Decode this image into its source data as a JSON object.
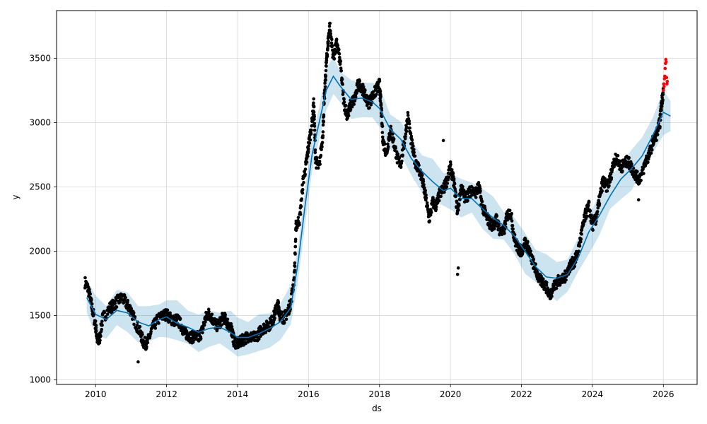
{
  "chart_data": {
    "type": "scatter",
    "title": "",
    "xlabel": "ds",
    "ylabel": "y",
    "xlim": [
      2008.9,
      2026.95
    ],
    "ylim": [
      965,
      3870
    ],
    "x_ticks": [
      2010,
      2012,
      2014,
      2016,
      2018,
      2020,
      2022,
      2024,
      2026
    ],
    "x_tick_labels": [
      "2010",
      "2012",
      "2014",
      "2016",
      "2018",
      "2020",
      "2022",
      "2024",
      "2026"
    ],
    "y_ticks": [
      1000,
      1500,
      2000,
      2500,
      3000,
      3500
    ],
    "y_tick_labels": [
      "1000",
      "1500",
      "2000",
      "2500",
      "3000",
      "3500"
    ],
    "grid": true,
    "legend": "none",
    "colors": {
      "observed": "#000000",
      "recent": "#ff0000",
      "forecast_line": "#0072b2",
      "uncertainty_band": "#0072b2",
      "grid": "#d9d9d9"
    },
    "observed_trend": [
      [
        2009.7,
        1760
      ],
      [
        2009.8,
        1700
      ],
      [
        2009.9,
        1560
      ],
      [
        2010.0,
        1420
      ],
      [
        2010.05,
        1310
      ],
      [
        2010.1,
        1300
      ],
      [
        2010.2,
        1480
      ],
      [
        2010.4,
        1560
      ],
      [
        2010.5,
        1580
      ],
      [
        2010.6,
        1610
      ],
      [
        2010.75,
        1640
      ],
      [
        2010.9,
        1580
      ],
      [
        2011.0,
        1540
      ],
      [
        2011.1,
        1460
      ],
      [
        2011.25,
        1370
      ],
      [
        2011.35,
        1290
      ],
      [
        2011.45,
        1280
      ],
      [
        2011.6,
        1400
      ],
      [
        2011.75,
        1470
      ],
      [
        2011.9,
        1500
      ],
      [
        2012.0,
        1510
      ],
      [
        2012.1,
        1480
      ],
      [
        2012.2,
        1460
      ],
      [
        2012.3,
        1470
      ],
      [
        2012.4,
        1430
      ],
      [
        2012.5,
        1370
      ],
      [
        2012.6,
        1350
      ],
      [
        2012.7,
        1330
      ],
      [
        2012.8,
        1340
      ],
      [
        2012.9,
        1330
      ],
      [
        2013.0,
        1380
      ],
      [
        2013.1,
        1480
      ],
      [
        2013.2,
        1520
      ],
      [
        2013.3,
        1470
      ],
      [
        2013.4,
        1420
      ],
      [
        2013.5,
        1440
      ],
      [
        2013.6,
        1490
      ],
      [
        2013.7,
        1450
      ],
      [
        2013.8,
        1400
      ],
      [
        2013.85,
        1380
      ],
      [
        2013.9,
        1300
      ],
      [
        2014.0,
        1280
      ],
      [
        2014.1,
        1300
      ],
      [
        2014.2,
        1320
      ],
      [
        2014.3,
        1340
      ],
      [
        2014.4,
        1330
      ],
      [
        2014.5,
        1330
      ],
      [
        2014.6,
        1360
      ],
      [
        2014.7,
        1400
      ],
      [
        2014.8,
        1410
      ],
      [
        2014.9,
        1430
      ],
      [
        2015.0,
        1470
      ],
      [
        2015.1,
        1560
      ],
      [
        2015.15,
        1580
      ],
      [
        2015.2,
        1500
      ],
      [
        2015.3,
        1480
      ],
      [
        2015.4,
        1520
      ],
      [
        2015.5,
        1600
      ],
      [
        2015.6,
        1800
      ],
      [
        2015.65,
        2200
      ],
      [
        2015.75,
        2250
      ],
      [
        2015.85,
        2550
      ],
      [
        2015.95,
        2700
      ],
      [
        2016.0,
        2820
      ],
      [
        2016.1,
        3000
      ],
      [
        2016.15,
        3150
      ],
      [
        2016.2,
        2700
      ],
      [
        2016.3,
        2650
      ],
      [
        2016.4,
        2900
      ],
      [
        2016.45,
        3200
      ],
      [
        2016.5,
        3450
      ],
      [
        2016.55,
        3620
      ],
      [
        2016.6,
        3750
      ],
      [
        2016.7,
        3500
      ],
      [
        2016.8,
        3620
      ],
      [
        2016.9,
        3450
      ],
      [
        2017.0,
        3150
      ],
      [
        2017.1,
        3050
      ],
      [
        2017.2,
        3150
      ],
      [
        2017.3,
        3180
      ],
      [
        2017.4,
        3300
      ],
      [
        2017.5,
        3280
      ],
      [
        2017.6,
        3200
      ],
      [
        2017.7,
        3150
      ],
      [
        2017.8,
        3200
      ],
      [
        2017.9,
        3250
      ],
      [
        2018.0,
        3300
      ],
      [
        2018.05,
        3100
      ],
      [
        2018.1,
        2850
      ],
      [
        2018.2,
        2760
      ],
      [
        2018.3,
        2950
      ],
      [
        2018.4,
        2850
      ],
      [
        2018.5,
        2720
      ],
      [
        2018.6,
        2680
      ],
      [
        2018.7,
        2850
      ],
      [
        2018.8,
        3050
      ],
      [
        2018.9,
        2850
      ],
      [
        2019.0,
        2700
      ],
      [
        2019.1,
        2650
      ],
      [
        2019.2,
        2560
      ],
      [
        2019.3,
        2420
      ],
      [
        2019.4,
        2250
      ],
      [
        2019.5,
        2380
      ],
      [
        2019.6,
        2350
      ],
      [
        2019.7,
        2450
      ],
      [
        2019.8,
        2480
      ],
      [
        2019.9,
        2550
      ],
      [
        2020.0,
        2650
      ],
      [
        2020.1,
        2530
      ],
      [
        2020.2,
        2300
      ],
      [
        2020.3,
        2500
      ],
      [
        2020.4,
        2420
      ],
      [
        2020.5,
        2440
      ],
      [
        2020.6,
        2480
      ],
      [
        2020.7,
        2450
      ],
      [
        2020.8,
        2500
      ],
      [
        2020.9,
        2350
      ],
      [
        2021.0,
        2280
      ],
      [
        2021.1,
        2220
      ],
      [
        2021.2,
        2200
      ],
      [
        2021.3,
        2250
      ],
      [
        2021.4,
        2150
      ],
      [
        2021.5,
        2150
      ],
      [
        2021.6,
        2280
      ],
      [
        2021.7,
        2300
      ],
      [
        2021.8,
        2100
      ],
      [
        2021.9,
        2020
      ],
      [
        2022.0,
        2000
      ],
      [
        2022.1,
        2070
      ],
      [
        2022.2,
        2020
      ],
      [
        2022.3,
        1930
      ],
      [
        2022.4,
        1860
      ],
      [
        2022.5,
        1780
      ],
      [
        2022.6,
        1760
      ],
      [
        2022.7,
        1720
      ],
      [
        2022.8,
        1660
      ],
      [
        2022.9,
        1720
      ],
      [
        2023.0,
        1760
      ],
      [
        2023.1,
        1780
      ],
      [
        2023.2,
        1780
      ],
      [
        2023.3,
        1850
      ],
      [
        2023.4,
        1900
      ],
      [
        2023.5,
        1920
      ],
      [
        2023.6,
        2000
      ],
      [
        2023.7,
        2150
      ],
      [
        2023.8,
        2280
      ],
      [
        2023.9,
        2350
      ],
      [
        2024.0,
        2200
      ],
      [
        2024.1,
        2250
      ],
      [
        2024.2,
        2400
      ],
      [
        2024.3,
        2550
      ],
      [
        2024.4,
        2500
      ],
      [
        2024.5,
        2560
      ],
      [
        2024.6,
        2700
      ],
      [
        2024.7,
        2720
      ],
      [
        2024.8,
        2650
      ],
      [
        2024.9,
        2680
      ],
      [
        2025.0,
        2700
      ],
      [
        2025.1,
        2650
      ],
      [
        2025.2,
        2600
      ],
      [
        2025.3,
        2560
      ],
      [
        2025.4,
        2600
      ],
      [
        2025.5,
        2700
      ],
      [
        2025.6,
        2750
      ],
      [
        2025.7,
        2850
      ],
      [
        2025.8,
        2900
      ],
      [
        2025.9,
        3000
      ],
      [
        2025.95,
        3150
      ],
      [
        2026.0,
        3250
      ]
    ],
    "observed_spread": 45,
    "recent_points": [
      [
        2026.0,
        3250
      ],
      [
        2026.01,
        3300
      ],
      [
        2026.02,
        3280
      ],
      [
        2026.03,
        3340
      ],
      [
        2026.04,
        3360
      ],
      [
        2026.05,
        3420
      ],
      [
        2026.06,
        3460
      ],
      [
        2026.07,
        3490
      ],
      [
        2026.08,
        3470
      ],
      [
        2026.09,
        3350
      ],
      [
        2026.1,
        3300
      ],
      [
        2026.11,
        3320
      ]
    ],
    "outliers": [
      [
        2011.2,
        1140
      ],
      [
        2020.2,
        1820
      ],
      [
        2020.22,
        1870
      ],
      [
        2025.3,
        2400
      ],
      [
        2019.8,
        2860
      ]
    ],
    "forecast": {
      "x": [
        2009.75,
        2010.0,
        2010.3,
        2010.6,
        2010.9,
        2011.2,
        2011.5,
        2011.8,
        2012.0,
        2012.3,
        2012.6,
        2012.9,
        2013.2,
        2013.5,
        2013.8,
        2014.0,
        2014.3,
        2014.6,
        2014.9,
        2015.2,
        2015.5,
        2015.7,
        2015.9,
        2016.1,
        2016.3,
        2016.5,
        2016.7,
        2016.9,
        2017.2,
        2017.5,
        2017.8,
        2018.0,
        2018.3,
        2018.6,
        2018.9,
        2019.2,
        2019.5,
        2019.8,
        2020.0,
        2020.3,
        2020.6,
        2020.9,
        2021.2,
        2021.5,
        2021.8,
        2022.1,
        2022.4,
        2022.7,
        2023.0,
        2023.3,
        2023.6,
        2023.9,
        2024.2,
        2024.5,
        2024.8,
        2025.1,
        2025.4,
        2025.7,
        2026.0,
        2026.2
      ],
      "yhat": [
        1640,
        1510,
        1470,
        1540,
        1520,
        1450,
        1420,
        1470,
        1490,
        1440,
        1410,
        1370,
        1400,
        1410,
        1370,
        1330,
        1330,
        1360,
        1400,
        1450,
        1560,
        1900,
        2350,
        2750,
        3000,
        3250,
        3360,
        3280,
        3180,
        3190,
        3160,
        3110,
        2950,
        2870,
        2720,
        2620,
        2540,
        2470,
        2490,
        2410,
        2410,
        2330,
        2260,
        2200,
        2120,
        2000,
        1880,
        1800,
        1790,
        1820,
        1950,
        2150,
        2280,
        2430,
        2560,
        2640,
        2740,
        2900,
        3080,
        3050
      ],
      "band_half_width": 140
    }
  }
}
